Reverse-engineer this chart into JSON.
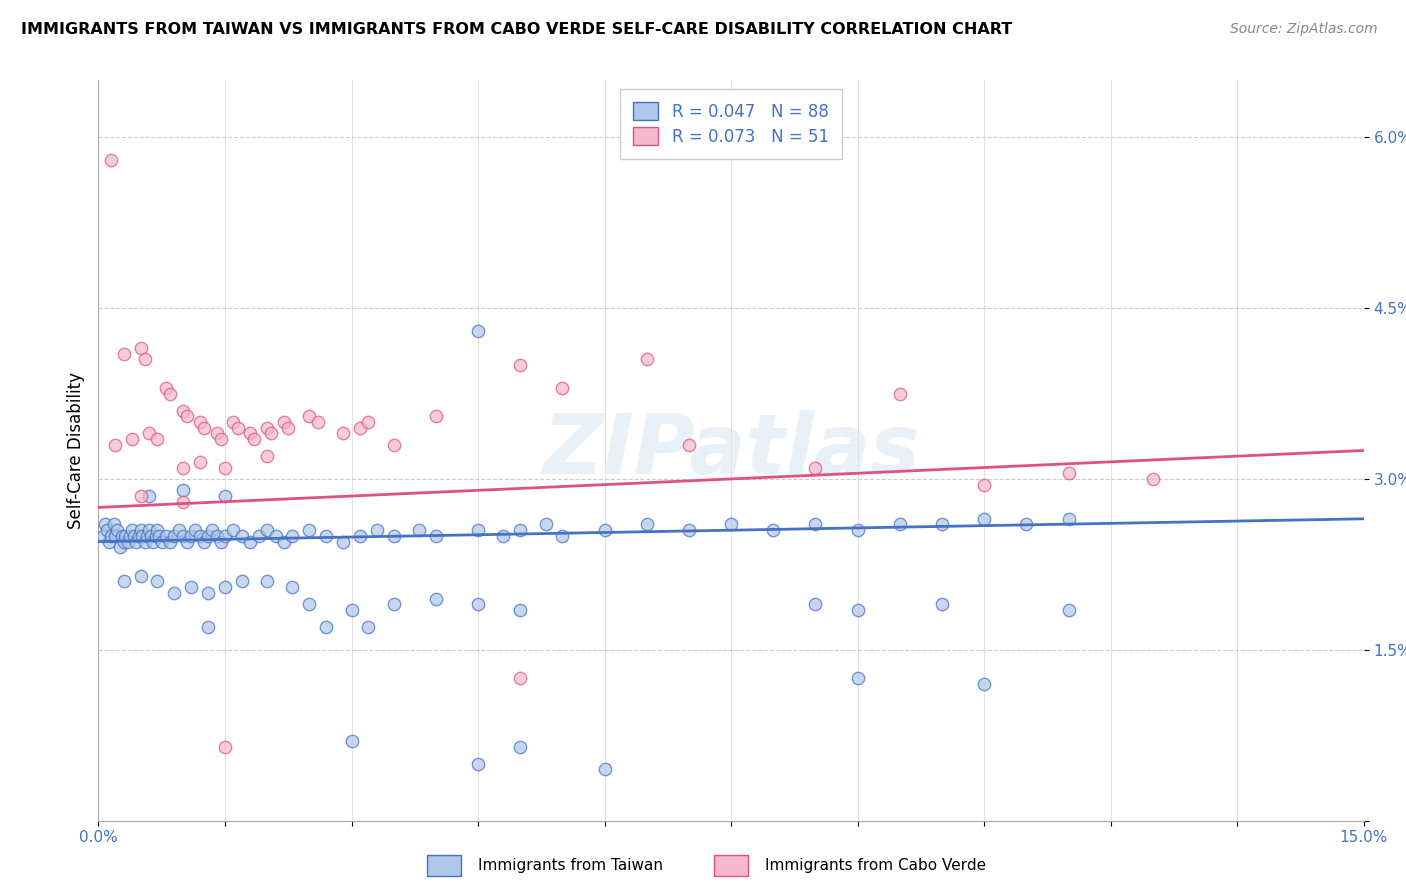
{
  "title": "IMMIGRANTS FROM TAIWAN VS IMMIGRANTS FROM CABO VERDE SELF-CARE DISABILITY CORRELATION CHART",
  "source": "Source: ZipAtlas.com",
  "ylabel": "Self-Care Disability",
  "xmin": 0.0,
  "xmax": 15.0,
  "ymin": 0.0,
  "ymax": 6.5,
  "yticks": [
    0.0,
    1.5,
    3.0,
    4.5,
    6.0
  ],
  "ytick_labels": [
    "",
    "1.5%",
    "3.0%",
    "4.5%",
    "6.0%"
  ],
  "taiwan_color": "#aec6e8",
  "cabo_verde_color": "#f5b8cc",
  "taiwan_line_color": "#4472c4",
  "cabo_verde_line_color": "#e05080",
  "taiwan_R": 0.047,
  "taiwan_N": 88,
  "cabo_verde_R": 0.073,
  "cabo_verde_N": 51,
  "taiwan_trend_start": 2.45,
  "taiwan_trend_end": 2.65,
  "cabo_verde_trend_start": 2.75,
  "cabo_verde_trend_end": 3.25,
  "taiwan_points": [
    [
      0.05,
      2.5
    ],
    [
      0.08,
      2.6
    ],
    [
      0.1,
      2.55
    ],
    [
      0.12,
      2.45
    ],
    [
      0.15,
      2.5
    ],
    [
      0.18,
      2.6
    ],
    [
      0.2,
      2.5
    ],
    [
      0.22,
      2.55
    ],
    [
      0.25,
      2.4
    ],
    [
      0.28,
      2.5
    ],
    [
      0.3,
      2.45
    ],
    [
      0.32,
      2.5
    ],
    [
      0.35,
      2.45
    ],
    [
      0.38,
      2.5
    ],
    [
      0.4,
      2.55
    ],
    [
      0.42,
      2.5
    ],
    [
      0.45,
      2.45
    ],
    [
      0.48,
      2.5
    ],
    [
      0.5,
      2.55
    ],
    [
      0.52,
      2.5
    ],
    [
      0.55,
      2.45
    ],
    [
      0.58,
      2.5
    ],
    [
      0.6,
      2.55
    ],
    [
      0.62,
      2.5
    ],
    [
      0.65,
      2.45
    ],
    [
      0.68,
      2.5
    ],
    [
      0.7,
      2.55
    ],
    [
      0.72,
      2.5
    ],
    [
      0.75,
      2.45
    ],
    [
      0.8,
      2.5
    ],
    [
      0.85,
      2.45
    ],
    [
      0.9,
      2.5
    ],
    [
      0.95,
      2.55
    ],
    [
      1.0,
      2.5
    ],
    [
      1.05,
      2.45
    ],
    [
      1.1,
      2.5
    ],
    [
      1.15,
      2.55
    ],
    [
      1.2,
      2.5
    ],
    [
      1.25,
      2.45
    ],
    [
      1.3,
      2.5
    ],
    [
      1.35,
      2.55
    ],
    [
      1.4,
      2.5
    ],
    [
      1.45,
      2.45
    ],
    [
      1.5,
      2.5
    ],
    [
      1.6,
      2.55
    ],
    [
      1.7,
      2.5
    ],
    [
      1.8,
      2.45
    ],
    [
      1.9,
      2.5
    ],
    [
      2.0,
      2.55
    ],
    [
      2.1,
      2.5
    ],
    [
      2.2,
      2.45
    ],
    [
      2.3,
      2.5
    ],
    [
      2.5,
      2.55
    ],
    [
      2.7,
      2.5
    ],
    [
      2.9,
      2.45
    ],
    [
      3.1,
      2.5
    ],
    [
      3.3,
      2.55
    ],
    [
      3.5,
      2.5
    ],
    [
      3.8,
      2.55
    ],
    [
      4.0,
      2.5
    ],
    [
      4.5,
      2.55
    ],
    [
      4.8,
      2.5
    ],
    [
      5.0,
      2.55
    ],
    [
      5.3,
      2.6
    ],
    [
      5.5,
      2.5
    ],
    [
      6.0,
      2.55
    ],
    [
      6.5,
      2.6
    ],
    [
      7.0,
      2.55
    ],
    [
      7.5,
      2.6
    ],
    [
      8.0,
      2.55
    ],
    [
      8.5,
      2.6
    ],
    [
      9.0,
      2.55
    ],
    [
      9.5,
      2.6
    ],
    [
      10.0,
      2.6
    ],
    [
      10.5,
      2.65
    ],
    [
      11.0,
      2.6
    ],
    [
      11.5,
      2.65
    ],
    [
      0.6,
      2.85
    ],
    [
      1.0,
      2.9
    ],
    [
      1.5,
      2.85
    ],
    [
      4.5,
      4.3
    ],
    [
      0.3,
      2.1
    ],
    [
      0.5,
      2.15
    ],
    [
      0.7,
      2.1
    ],
    [
      0.9,
      2.0
    ],
    [
      1.1,
      2.05
    ],
    [
      1.3,
      2.0
    ],
    [
      1.5,
      2.05
    ],
    [
      1.7,
      2.1
    ],
    [
      2.0,
      2.1
    ],
    [
      2.3,
      2.05
    ],
    [
      2.5,
      1.9
    ],
    [
      3.0,
      1.85
    ],
    [
      3.5,
      1.9
    ],
    [
      4.0,
      1.95
    ],
    [
      4.5,
      1.9
    ],
    [
      5.0,
      1.85
    ],
    [
      8.5,
      1.9
    ],
    [
      9.0,
      1.85
    ],
    [
      10.0,
      1.9
    ],
    [
      11.5,
      1.85
    ],
    [
      1.3,
      1.7
    ],
    [
      2.7,
      1.7
    ],
    [
      3.2,
      1.7
    ],
    [
      9.0,
      1.25
    ],
    [
      10.5,
      1.2
    ],
    [
      4.5,
      0.5
    ],
    [
      6.0,
      0.45
    ],
    [
      3.0,
      0.7
    ],
    [
      5.0,
      0.65
    ]
  ],
  "cabo_verde_points": [
    [
      0.15,
      5.8
    ],
    [
      0.3,
      4.1
    ],
    [
      0.5,
      4.15
    ],
    [
      0.55,
      4.05
    ],
    [
      0.8,
      3.8
    ],
    [
      0.85,
      3.75
    ],
    [
      1.0,
      3.6
    ],
    [
      1.05,
      3.55
    ],
    [
      1.2,
      3.5
    ],
    [
      1.25,
      3.45
    ],
    [
      1.4,
      3.4
    ],
    [
      1.45,
      3.35
    ],
    [
      1.6,
      3.5
    ],
    [
      1.65,
      3.45
    ],
    [
      1.8,
      3.4
    ],
    [
      1.85,
      3.35
    ],
    [
      2.0,
      3.45
    ],
    [
      2.05,
      3.4
    ],
    [
      2.2,
      3.5
    ],
    [
      2.25,
      3.45
    ],
    [
      2.5,
      3.55
    ],
    [
      2.6,
      3.5
    ],
    [
      2.9,
      3.4
    ],
    [
      3.1,
      3.45
    ],
    [
      3.2,
      3.5
    ],
    [
      3.5,
      3.3
    ],
    [
      0.2,
      3.3
    ],
    [
      0.4,
      3.35
    ],
    [
      0.6,
      3.4
    ],
    [
      0.7,
      3.35
    ],
    [
      1.0,
      3.1
    ],
    [
      1.2,
      3.15
    ],
    [
      1.5,
      3.1
    ],
    [
      2.0,
      3.2
    ],
    [
      4.0,
      3.55
    ],
    [
      5.0,
      4.0
    ],
    [
      5.5,
      3.8
    ],
    [
      6.5,
      4.05
    ],
    [
      7.0,
      3.3
    ],
    [
      8.5,
      3.1
    ],
    [
      9.5,
      3.75
    ],
    [
      10.5,
      2.95
    ],
    [
      11.5,
      3.05
    ],
    [
      12.5,
      3.0
    ],
    [
      0.5,
      2.85
    ],
    [
      1.0,
      2.8
    ],
    [
      1.5,
      0.65
    ],
    [
      5.0,
      1.25
    ]
  ]
}
